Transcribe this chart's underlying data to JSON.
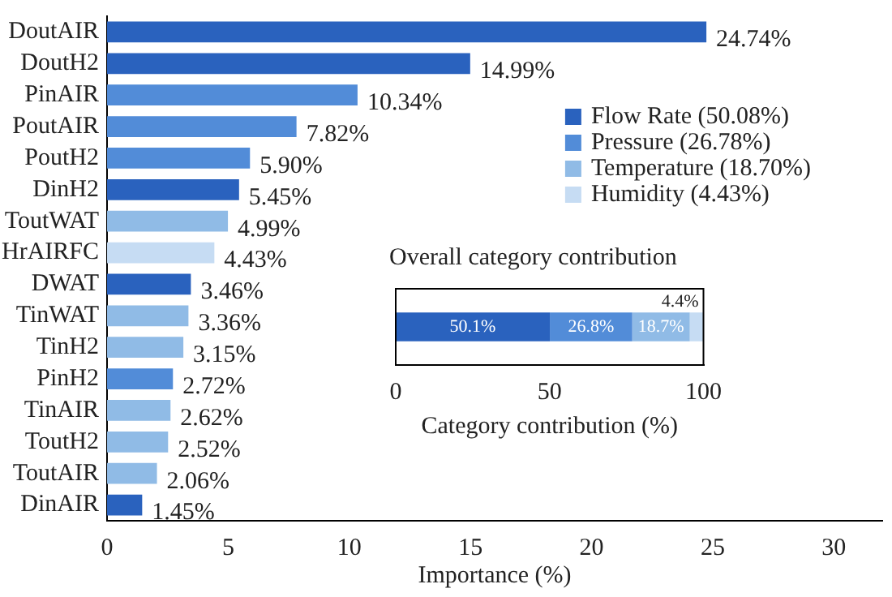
{
  "chart_data": [
    {
      "type": "bar",
      "orientation": "horizontal",
      "stacked": true,
      "xlabel": "Importance (%)",
      "categories": [
        "DoutAIR",
        "DoutH2",
        "PinAIR",
        "PoutAIR",
        "PoutH2",
        "DinH2",
        "ToutWAT",
        "HrAIRFC",
        "DWAT",
        "TinWAT",
        "TinH2",
        "PinH2",
        "TinAIR",
        "ToutH2",
        "ToutAIR",
        "DinAIR"
      ],
      "series": [
        {
          "name": "Flow Rate (50.08%)",
          "color": "#2a62be",
          "values": [
            24.74,
            14.99,
            null,
            null,
            null,
            5.45,
            null,
            null,
            3.46,
            null,
            null,
            null,
            null,
            null,
            null,
            1.45
          ],
          "value_labels": [
            "24.74%",
            "14.99%",
            null,
            null,
            null,
            "5.45%",
            null,
            null,
            "3.46%",
            null,
            null,
            null,
            null,
            null,
            null,
            "1.45%"
          ]
        },
        {
          "name": "Pressure (26.78%)",
          "color": "#528cd8",
          "values": [
            null,
            null,
            10.34,
            7.82,
            5.9,
            null,
            null,
            null,
            null,
            null,
            null,
            2.72,
            null,
            null,
            null,
            null
          ],
          "value_labels": [
            null,
            null,
            "10.34%",
            "7.82%",
            "5.90%",
            null,
            null,
            null,
            null,
            null,
            null,
            "2.72%",
            null,
            null,
            null,
            null
          ]
        },
        {
          "name": "Temperature (18.70%)",
          "color": "#90bbe6",
          "values": [
            null,
            null,
            null,
            null,
            null,
            null,
            4.99,
            null,
            null,
            3.36,
            3.15,
            null,
            2.62,
            2.52,
            2.06,
            null
          ],
          "value_labels": [
            null,
            null,
            null,
            null,
            null,
            null,
            "4.99%",
            null,
            null,
            "3.36%",
            "3.15%",
            null,
            "2.62%",
            "2.52%",
            "2.06%",
            null
          ]
        },
        {
          "name": "Humidity (4.43%)",
          "color": "#c6dcf3",
          "values": [
            null,
            null,
            null,
            null,
            null,
            null,
            null,
            4.43,
            null,
            null,
            null,
            null,
            null,
            null,
            null,
            null
          ],
          "value_labels": [
            null,
            null,
            null,
            null,
            null,
            null,
            null,
            "4.43%",
            null,
            null,
            null,
            null,
            null,
            null,
            null,
            null
          ]
        }
      ],
      "xlim": [
        0,
        32
      ],
      "xticks": [
        0,
        5,
        10,
        15,
        20,
        25,
        30
      ],
      "grid": false,
      "legend": "top right"
    },
    {
      "type": "bar",
      "orientation": "horizontal",
      "stacked": true,
      "title": "Overall category contribution",
      "xlabel": "Category contribution (%)",
      "categories": [
        null
      ],
      "series": [
        {
          "color": "#2a62be",
          "values": [
            50.08
          ],
          "value_labels": [
            "50.1%"
          ]
        },
        {
          "color": "#528cd8",
          "values": [
            26.78
          ],
          "value_labels": [
            "26.8%"
          ]
        },
        {
          "color": "#90bbe6",
          "values": [
            18.7
          ],
          "value_labels": [
            "18.7%"
          ]
        },
        {
          "color": "#c6dcf3",
          "values": [
            4.43
          ],
          "value_labels": [
            "4.4%"
          ]
        }
      ],
      "xlim": [
        0,
        100
      ],
      "xticks": [
        0,
        50,
        100
      ],
      "grid": false
    }
  ]
}
